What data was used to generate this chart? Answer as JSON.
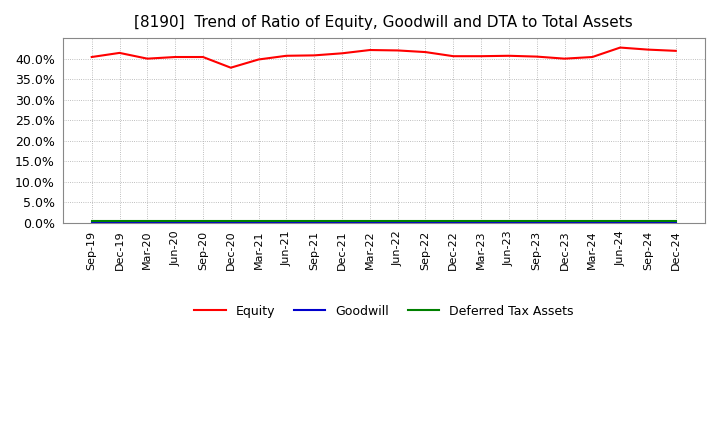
{
  "title": "[8190]  Trend of Ratio of Equity, Goodwill and DTA to Total Assets",
  "x_labels": [
    "Sep-19",
    "Dec-19",
    "Mar-20",
    "Jun-20",
    "Sep-20",
    "Dec-20",
    "Mar-21",
    "Jun-21",
    "Sep-21",
    "Dec-21",
    "Mar-22",
    "Jun-22",
    "Sep-22",
    "Dec-22",
    "Mar-23",
    "Jun-23",
    "Sep-23",
    "Dec-23",
    "Mar-24",
    "Jun-24",
    "Sep-24",
    "Dec-24"
  ],
  "equity": [
    0.404,
    0.414,
    0.4,
    0.404,
    0.404,
    0.378,
    0.398,
    0.407,
    0.408,
    0.413,
    0.421,
    0.42,
    0.416,
    0.406,
    0.406,
    0.407,
    0.405,
    0.4,
    0.404,
    0.427,
    0.422,
    0.419
  ],
  "goodwill": [
    0.0,
    0.0,
    0.0,
    0.0,
    0.0,
    0.0,
    0.0,
    0.0,
    0.0,
    0.0,
    0.0,
    0.0,
    0.0,
    0.0,
    0.0,
    0.0,
    0.0,
    0.0,
    0.0,
    0.0,
    0.0,
    0.0
  ],
  "dta": [
    0.004,
    0.004,
    0.004,
    0.004,
    0.004,
    0.004,
    0.004,
    0.004,
    0.004,
    0.004,
    0.004,
    0.004,
    0.004,
    0.004,
    0.004,
    0.004,
    0.004,
    0.004,
    0.004,
    0.004,
    0.004,
    0.004
  ],
  "equity_color": "#FF0000",
  "goodwill_color": "#0000CC",
  "dta_color": "#008000",
  "ylim": [
    0.0,
    0.45
  ],
  "yticks": [
    0.0,
    0.05,
    0.1,
    0.15,
    0.2,
    0.25,
    0.3,
    0.35,
    0.4
  ],
  "background_color": "#FFFFFF",
  "plot_bg_color": "#FFFFFF",
  "grid_color": "#AAAAAA",
  "title_fontsize": 11,
  "axis_fontsize": 8,
  "legend_labels": [
    "Equity",
    "Goodwill",
    "Deferred Tax Assets"
  ]
}
